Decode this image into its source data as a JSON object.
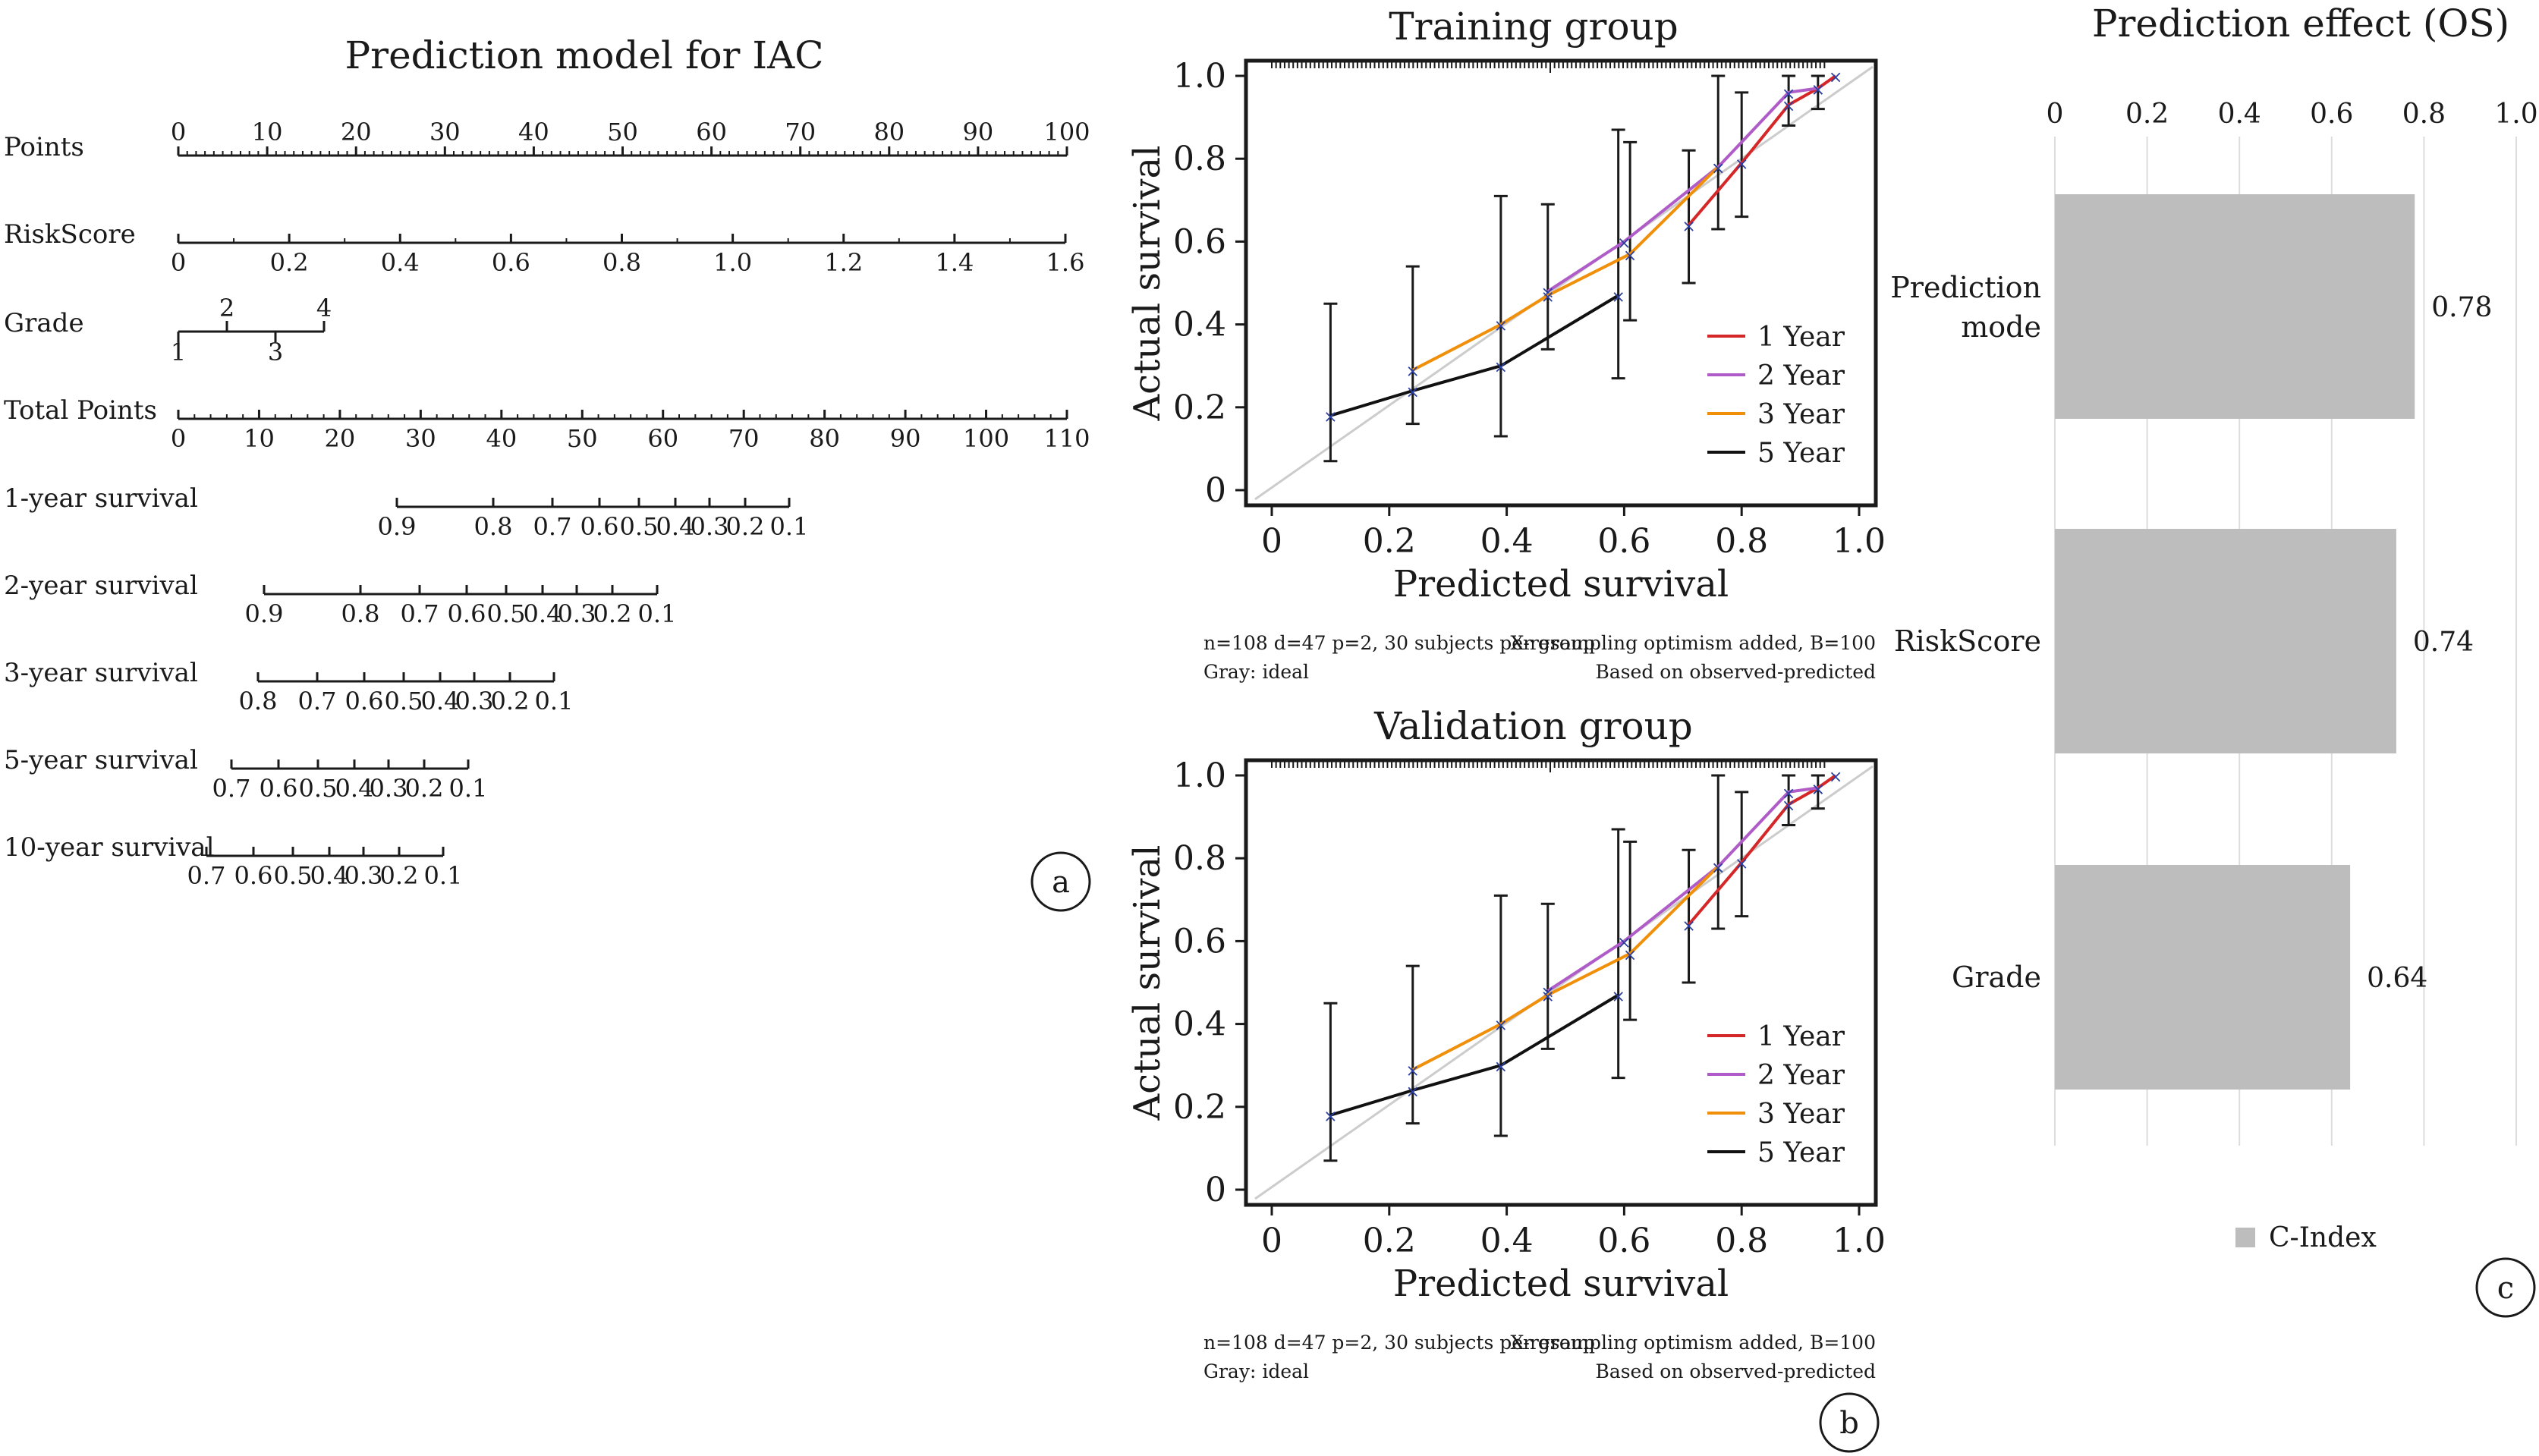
{
  "panel_labels": {
    "a": "a",
    "b": "b",
    "c": "c"
  },
  "colors": {
    "year1": "#d62728",
    "year2": "#b05cc8",
    "year3": "#f0900a",
    "year5": "#111111",
    "ideal": "#cccccc",
    "point": "#2b3fa0",
    "bar": "#bdbdbd"
  },
  "chart_data": [
    {
      "type": "nomogram",
      "title": "Prediction model for IAC",
      "rows": [
        {
          "label": "Points",
          "ticks": [
            "0",
            "10",
            "20",
            "30",
            "40",
            "50",
            "60",
            "70",
            "80",
            "90",
            "100"
          ],
          "range": [
            0,
            100
          ]
        },
        {
          "label": "RiskScore",
          "ticks": [
            "0",
            "0.2",
            "0.4",
            "0.6",
            "0.8",
            "1.0",
            "1.2",
            "1.4",
            "1.6"
          ],
          "range": [
            0,
            1.6
          ]
        },
        {
          "label": "Grade",
          "ticks_above": [
            "2",
            "4"
          ],
          "ticks_below": [
            "1",
            "3"
          ],
          "points": {
            "1": 0,
            "2": 5.5,
            "3": 11,
            "4": 16.5
          }
        },
        {
          "label": "Total Points",
          "ticks": [
            "0",
            "10",
            "20",
            "30",
            "40",
            "50",
            "60",
            "70",
            "80",
            "90",
            "100",
            "110"
          ],
          "range": [
            0,
            110
          ]
        },
        {
          "label": "1-year survival",
          "ticks": [
            "0.9",
            "0.8",
            "0.7",
            "0.6",
            "0.5",
            "0.4",
            "0.3",
            "0.2",
            "0.1"
          ]
        },
        {
          "label": "2-year survival",
          "ticks": [
            "0.9",
            "0.8",
            "0.7",
            "0.6",
            "0.5",
            "0.4",
            "0.3",
            "0.2",
            "0.1"
          ]
        },
        {
          "label": "3-year survival",
          "ticks": [
            "0.8",
            "0.7",
            "0.6",
            "0.5",
            "0.4",
            "0.3",
            "0.2",
            "0.1"
          ]
        },
        {
          "label": "5-year survival",
          "ticks": [
            "0.7",
            "0.6",
            "0.5",
            "0.4",
            "0.3",
            "0.2",
            "0.1"
          ]
        },
        {
          "label": "10-year survival",
          "ticks": [
            "0.7",
            "0.6",
            "0.5",
            "0.4",
            "0.3",
            "0.2",
            "0.1"
          ]
        }
      ]
    },
    {
      "type": "line",
      "title": "Training group",
      "xlabel": "Predicted survival",
      "ylabel": "Actual survival",
      "xlim": [
        0,
        1.0
      ],
      "ylim": [
        0,
        1.0
      ],
      "xticks": [
        "0",
        "0.2",
        "0.4",
        "0.6",
        "0.8",
        "1.0"
      ],
      "yticks": [
        "0",
        "0.2",
        "0.4",
        "0.6",
        "0.8",
        "1.0"
      ],
      "legend_position": "right",
      "series": [
        {
          "name": "1 Year",
          "x": [
            0.71,
            0.8,
            0.88,
            0.93,
            0.96
          ],
          "y": [
            0.64,
            0.79,
            0.93,
            0.97,
            1.0
          ]
        },
        {
          "name": "2 Year",
          "x": [
            0.47,
            0.6,
            0.76,
            0.88,
            0.93
          ],
          "y": [
            0.48,
            0.6,
            0.78,
            0.96,
            0.97
          ]
        },
        {
          "name": "3 Year",
          "x": [
            0.24,
            0.39,
            0.47,
            0.61,
            0.76
          ],
          "y": [
            0.29,
            0.4,
            0.47,
            0.57,
            0.78
          ]
        },
        {
          "name": "5 Year",
          "x": [
            0.1,
            0.24,
            0.39,
            0.59
          ],
          "y": [
            0.18,
            0.24,
            0.3,
            0.47
          ]
        }
      ],
      "error_bars": [
        {
          "x": 0.1,
          "low": 0.07,
          "high": 0.45
        },
        {
          "x": 0.24,
          "low": 0.16,
          "high": 0.54
        },
        {
          "x": 0.39,
          "low": 0.13,
          "high": 0.71
        },
        {
          "x": 0.47,
          "low": 0.34,
          "high": 0.69
        },
        {
          "x": 0.59,
          "low": 0.27,
          "high": 0.87
        },
        {
          "x": 0.61,
          "low": 0.41,
          "high": 0.84
        },
        {
          "x": 0.71,
          "low": 0.5,
          "high": 0.82
        },
        {
          "x": 0.76,
          "low": 0.63,
          "high": 1.0
        },
        {
          "x": 0.8,
          "low": 0.66,
          "high": 0.96
        },
        {
          "x": 0.88,
          "low": 0.88,
          "high": 1.0
        },
        {
          "x": 0.93,
          "low": 0.92,
          "high": 1.0
        }
      ],
      "notes": {
        "left1": "n=108 d=47 p=2, 30 subjects per group",
        "right1": "X-resampling optimism added, B=100",
        "left2": "Gray: ideal",
        "right2": "Based on observed-predicted"
      }
    },
    {
      "type": "line",
      "title": "Validation group",
      "xlabel": "Predicted survival",
      "ylabel": "Actual survival",
      "xlim": [
        0,
        1.0
      ],
      "ylim": [
        0,
        1.0
      ],
      "xticks": [
        "0",
        "0.2",
        "0.4",
        "0.6",
        "0.8",
        "1.0"
      ],
      "yticks": [
        "0",
        "0.2",
        "0.4",
        "0.6",
        "0.8",
        "1.0"
      ],
      "legend_position": "right",
      "series": [
        {
          "name": "1 Year",
          "x": [
            0.71,
            0.8,
            0.88,
            0.93,
            0.96
          ],
          "y": [
            0.64,
            0.79,
            0.93,
            0.97,
            1.0
          ]
        },
        {
          "name": "2 Year",
          "x": [
            0.47,
            0.6,
            0.76,
            0.88,
            0.93
          ],
          "y": [
            0.48,
            0.6,
            0.78,
            0.96,
            0.97
          ]
        },
        {
          "name": "3 Year",
          "x": [
            0.24,
            0.39,
            0.47,
            0.61,
            0.76
          ],
          "y": [
            0.29,
            0.4,
            0.47,
            0.57,
            0.78
          ]
        },
        {
          "name": "5 Year",
          "x": [
            0.1,
            0.24,
            0.39,
            0.59
          ],
          "y": [
            0.18,
            0.24,
            0.3,
            0.47
          ]
        }
      ],
      "error_bars": [
        {
          "x": 0.1,
          "low": 0.07,
          "high": 0.45
        },
        {
          "x": 0.24,
          "low": 0.16,
          "high": 0.54
        },
        {
          "x": 0.39,
          "low": 0.13,
          "high": 0.71
        },
        {
          "x": 0.47,
          "low": 0.34,
          "high": 0.69
        },
        {
          "x": 0.59,
          "low": 0.27,
          "high": 0.87
        },
        {
          "x": 0.61,
          "low": 0.41,
          "high": 0.84
        },
        {
          "x": 0.71,
          "low": 0.5,
          "high": 0.82
        },
        {
          "x": 0.76,
          "low": 0.63,
          "high": 1.0
        },
        {
          "x": 0.8,
          "low": 0.66,
          "high": 0.96
        },
        {
          "x": 0.88,
          "low": 0.88,
          "high": 1.0
        },
        {
          "x": 0.93,
          "low": 0.92,
          "high": 1.0
        }
      ],
      "notes": {
        "left1": "n=108 d=47 p=2, 30 subjects per group",
        "right1": "X-resampling optimism added, B=100",
        "left2": "Gray: ideal",
        "right2": "Based on observed-predicted"
      }
    },
    {
      "type": "bar",
      "orientation": "horizontal",
      "title": "Prediction effect (OS)",
      "categories": [
        "Prediction\nmode",
        "RiskScore",
        "Grade"
      ],
      "series": [
        {
          "name": "C-Index",
          "values": [
            0.78,
            0.74,
            0.64
          ]
        }
      ],
      "value_labels": [
        "0.78",
        "0.74",
        "0.64"
      ],
      "xticks": [
        "0",
        "0.2",
        "0.4",
        "0.6",
        "0.8",
        "1.0"
      ],
      "xlim": [
        0,
        1.0
      ],
      "legend_position": "bottom"
    }
  ]
}
